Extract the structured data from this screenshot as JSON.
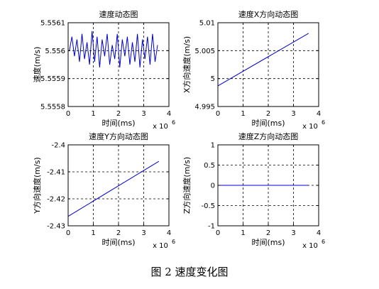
{
  "caption": "图 2 速度变化图",
  "colors": {
    "line": "#0000cc",
    "axis": "#000000",
    "grid": "#000000"
  },
  "chart_data": [
    {
      "type": "line",
      "title": "速度动态图",
      "xlabel": "时间(ms)",
      "ylabel": "速度(m/s)",
      "x_multiplier_base": "x 10",
      "x_multiplier_exp": "6",
      "xlim": [
        0,
        4
      ],
      "ylim": [
        5.5558,
        5.5561
      ],
      "xticks": [
        0,
        1,
        2,
        3,
        4
      ],
      "yticks": [
        5.5558,
        5.5559,
        5.556,
        5.5561
      ],
      "xtick_labels": [
        "0",
        "1",
        "2",
        "3",
        "4"
      ],
      "ytick_labels": [
        "5.5558",
        "5.5559",
        "5.556",
        "5.5561"
      ],
      "grid": true,
      "series": [
        {
          "x": [
            0.05,
            0.15,
            0.25,
            0.35,
            0.45,
            0.55,
            0.65,
            0.75,
            0.85,
            0.95,
            1.05,
            1.15,
            1.25,
            1.35,
            1.45,
            1.55,
            1.65,
            1.75,
            1.85,
            1.95,
            2.05,
            2.15,
            2.25,
            2.35,
            2.45,
            2.55,
            2.65,
            2.75,
            2.85,
            2.95,
            3.05,
            3.15,
            3.25,
            3.35,
            3.45,
            3.55
          ],
          "y": [
            5.556,
            5.55605,
            5.55598,
            5.55604,
            5.55596,
            5.55606,
            5.55597,
            5.55603,
            5.55595,
            5.55607,
            5.55596,
            5.55605,
            5.55594,
            5.55604,
            5.55598,
            5.55606,
            5.55595,
            5.55602,
            5.55597,
            5.55606,
            5.55594,
            5.55604,
            5.55598,
            5.55605,
            5.55595,
            5.55603,
            5.55596,
            5.55606,
            5.55594,
            5.55604,
            5.55597,
            5.55605,
            5.55595,
            5.55606,
            5.55596,
            5.55602
          ]
        }
      ]
    },
    {
      "type": "line",
      "title": "速度X方向动态图",
      "xlabel": "时间(ms)",
      "ylabel": "X方向速度(m/s)",
      "x_multiplier_base": "x 10",
      "x_multiplier_exp": "6",
      "xlim": [
        0,
        4
      ],
      "ylim": [
        4.995,
        5.01
      ],
      "xticks": [
        0,
        1,
        2,
        3,
        4
      ],
      "yticks": [
        4.995,
        5,
        5.005,
        5.01
      ],
      "xtick_labels": [
        "0",
        "1",
        "2",
        "3",
        "4"
      ],
      "ytick_labels": [
        "4.995",
        "5",
        "5.005",
        "5.01"
      ],
      "grid": true,
      "series": [
        {
          "x": [
            0,
            3.6
          ],
          "y": [
            4.9987,
            5.0081
          ]
        }
      ]
    },
    {
      "type": "line",
      "title": "速度Y方向动态图",
      "xlabel": "时间(ms)",
      "ylabel": "Y方向速度(m/s)",
      "x_multiplier_base": "x 10",
      "x_multiplier_exp": "6",
      "xlim": [
        0,
        4
      ],
      "ylim": [
        -2.43,
        -2.4
      ],
      "xticks": [
        0,
        1,
        2,
        3,
        4
      ],
      "yticks": [
        -2.43,
        -2.42,
        -2.41,
        -2.4
      ],
      "xtick_labels": [
        "0",
        "1",
        "2",
        "3",
        "4"
      ],
      "ytick_labels": [
        "-2.43",
        "-2.42",
        "-2.41",
        "-2.4"
      ],
      "grid": true,
      "series": [
        {
          "x": [
            0,
            3.6
          ],
          "y": [
            -2.4265,
            -2.4061
          ]
        }
      ]
    },
    {
      "type": "line",
      "title": "速度Z方向动态图",
      "xlabel": "时间(ms)",
      "ylabel": "Z方向速度(m/s)",
      "x_multiplier_base": "x 10",
      "x_multiplier_exp": "6",
      "xlim": [
        0,
        4
      ],
      "ylim": [
        -1,
        1
      ],
      "xticks": [
        0,
        1,
        2,
        3,
        4
      ],
      "yticks": [
        -1,
        -0.5,
        0,
        0.5,
        1
      ],
      "xtick_labels": [
        "0",
        "1",
        "2",
        "3",
        "4"
      ],
      "ytick_labels": [
        "-1",
        "-0.5",
        "0",
        "0.5",
        "1"
      ],
      "grid": true,
      "series": [
        {
          "x": [
            0,
            3.6
          ],
          "y": [
            0,
            0
          ]
        }
      ]
    }
  ]
}
